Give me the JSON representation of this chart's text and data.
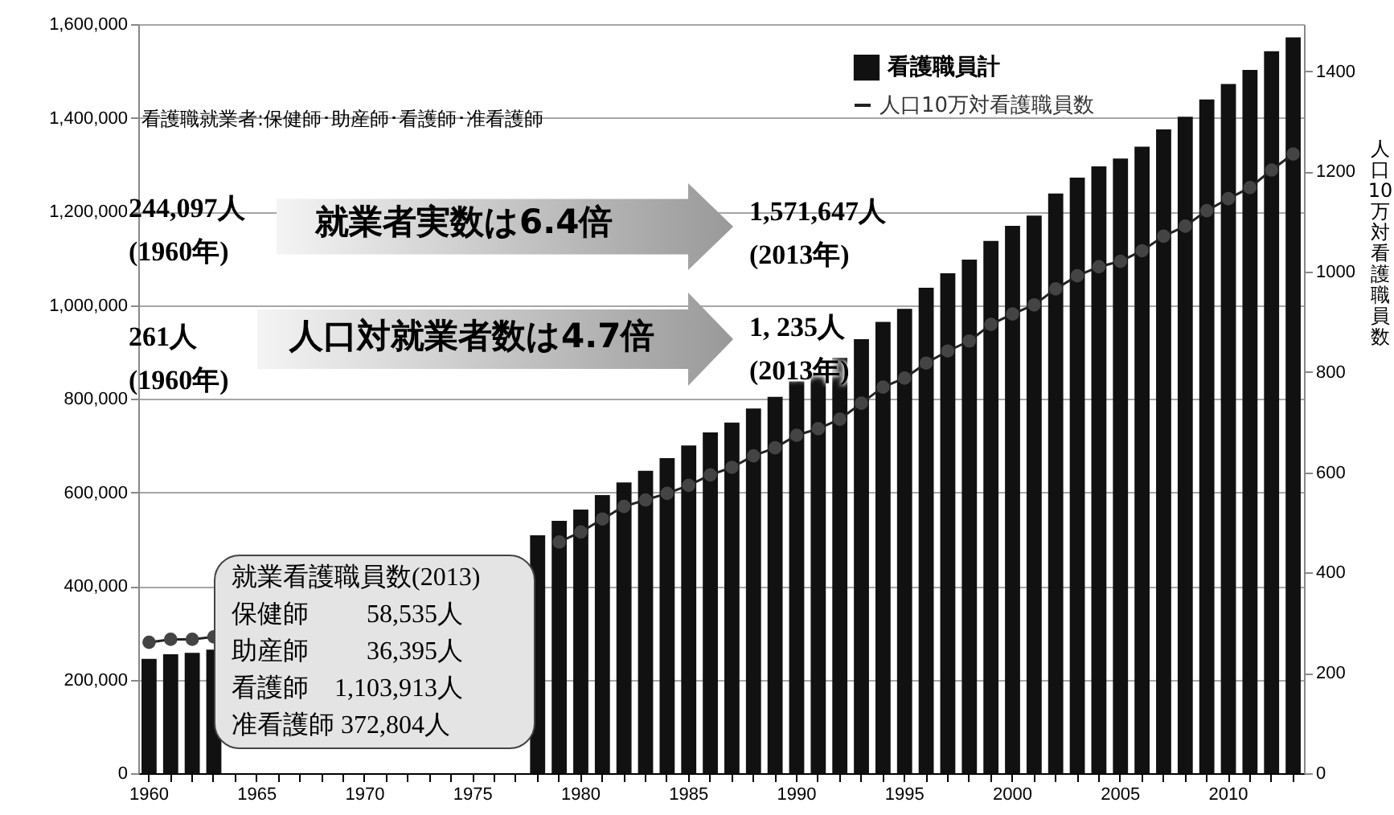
{
  "chart_data": {
    "type": "bar",
    "categories": [
      "1960",
      null,
      null,
      null,
      null,
      "1965",
      null,
      null,
      null,
      null,
      "1970",
      null,
      null,
      null,
      null,
      "1975",
      null,
      null,
      null,
      null,
      "1980",
      null,
      null,
      null,
      null,
      "1985",
      null,
      null,
      null,
      null,
      "1990",
      null,
      null,
      null,
      null,
      "1995",
      null,
      null,
      null,
      null,
      "2000",
      null,
      null,
      null,
      null,
      "2005",
      null,
      null,
      null,
      null,
      "2010",
      null,
      null,
      null
    ],
    "series": [
      {
        "name": "看護職員計",
        "color": "#111111",
        "values": [
          244097,
          254000,
          257000,
          264000,
          null,
          null,
          null,
          null,
          null,
          null,
          null,
          null,
          null,
          null,
          null,
          null,
          null,
          null,
          508000,
          539000,
          563000,
          594000,
          621000,
          646000,
          673000,
          700000,
          728000,
          749000,
          779000,
          804000,
          837000,
          854000,
          887000,
          927000,
          964000,
          992000,
          1037000,
          1068000,
          1097000,
          1137000,
          1169000,
          1191000,
          1238000,
          1272000,
          1296000,
          1313000,
          1338000,
          1375000,
          1402000,
          1439000,
          1472000,
          1502000,
          1542000,
          1571647
        ]
      },
      {
        "name": "人口10万対看護職員数",
        "type": "line",
        "axis": "y2",
        "color": "#222222",
        "marker": "circle",
        "values": [
          261,
          267,
          267,
          272,
          null,
          null,
          null,
          null,
          null,
          null,
          null,
          null,
          null,
          null,
          null,
          null,
          null,
          null,
          null,
          461,
          481,
          507,
          532,
          545,
          558,
          574,
          595,
          610,
          633,
          649,
          674,
          687,
          706,
          738,
          770,
          788,
          818,
          842,
          862,
          895,
          916,
          934,
          966,
          992,
          1010,
          1021,
          1042,
          1071,
          1091,
          1122,
          1146,
          1168,
          1203,
          1235
        ]
      }
    ],
    "ylim": [
      0,
      1600000
    ],
    "yticks": [
      0,
      {
        "value": 200000,
        "label": "200,000"
      },
      {
        "value": 400000,
        "label": "400,000"
      },
      {
        "value": 600000,
        "label": "600,000"
      },
      {
        "value": 800000,
        "label": "800,000"
      },
      {
        "value": 1000000,
        "label": "1,000,000"
      },
      {
        "value": 1200000,
        "label": "1,200,000"
      },
      {
        "value": 1400000,
        "label": "1,400,000"
      },
      {
        "value": 1600000,
        "label": "1,600,000"
      }
    ],
    "y2lim": [
      0,
      1494
    ],
    "y2ticks": [
      0,
      200,
      400,
      600,
      800,
      1000,
      1200,
      1400
    ],
    "y2label": "人口10万対看護職員数",
    "grid": "y",
    "legend": "top right",
    "annotations": [
      "看護職就業者:保健師･助産師･看護師･准看護師",
      "244,097人\n(1960年)",
      "就業者実数は6.4倍",
      "1,571,647人\n(2013年)",
      "261人\n(1960年)",
      "人口対就業者数は4.7倍",
      "1, 235人\n(2013年)",
      "就業看護職員数(2013)",
      "保健師　　 58,535人",
      "助産師　　 36,395人",
      "看護師　1,103,913人",
      "准看護師 372,804人"
    ]
  }
}
